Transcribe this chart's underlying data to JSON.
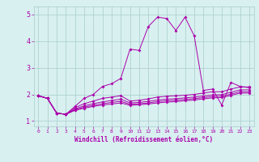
{
  "xlabel": "Windchill (Refroidissement éolien,°C)",
  "bg_color": "#d8f0f0",
  "line_color": "#aa00aa",
  "grid_color": "#aacccc",
  "xlim": [
    -0.5,
    23.5
  ],
  "ylim": [
    0.8,
    5.3
  ],
  "xticks": [
    0,
    1,
    2,
    3,
    4,
    5,
    6,
    7,
    8,
    9,
    10,
    11,
    12,
    13,
    14,
    15,
    16,
    17,
    18,
    19,
    20,
    21,
    22,
    23
  ],
  "yticks": [
    1,
    2,
    3,
    4,
    5
  ],
  "lines": [
    {
      "x": [
        0,
        1,
        2,
        3,
        4,
        5,
        6,
        7,
        8,
        9,
        10,
        11,
        12,
        13,
        14,
        15,
        16,
        17,
        18,
        19,
        20,
        21,
        22,
        23
      ],
      "y": [
        1.95,
        1.85,
        1.3,
        1.25,
        1.55,
        1.85,
        2.0,
        2.3,
        2.4,
        2.6,
        3.7,
        3.65,
        4.55,
        4.9,
        4.85,
        4.4,
        4.9,
        4.2,
        2.15,
        2.2,
        1.6,
        2.45,
        2.3,
        2.25
      ]
    },
    {
      "x": [
        0,
        1,
        2,
        3,
        4,
        5,
        6,
        7,
        8,
        9,
        10,
        11,
        12,
        13,
        14,
        15,
        16,
        17,
        18,
        19,
        20,
        21,
        22,
        23
      ],
      "y": [
        1.95,
        1.85,
        1.3,
        1.25,
        1.5,
        1.65,
        1.75,
        1.85,
        1.9,
        1.95,
        1.75,
        1.78,
        1.83,
        1.9,
        1.93,
        1.95,
        1.97,
        2.0,
        2.05,
        2.1,
        2.1,
        2.2,
        2.28,
        2.28
      ]
    },
    {
      "x": [
        0,
        1,
        2,
        3,
        4,
        5,
        6,
        7,
        8,
        9,
        10,
        11,
        12,
        13,
        14,
        15,
        16,
        17,
        18,
        19,
        20,
        21,
        22,
        23
      ],
      "y": [
        1.95,
        1.85,
        1.3,
        1.25,
        1.45,
        1.57,
        1.65,
        1.72,
        1.77,
        1.82,
        1.68,
        1.7,
        1.74,
        1.79,
        1.82,
        1.84,
        1.87,
        1.9,
        1.94,
        1.98,
        1.99,
        2.08,
        2.17,
        2.17
      ]
    },
    {
      "x": [
        0,
        1,
        2,
        3,
        4,
        5,
        6,
        7,
        8,
        9,
        10,
        11,
        12,
        13,
        14,
        15,
        16,
        17,
        18,
        19,
        20,
        21,
        22,
        23
      ],
      "y": [
        1.95,
        1.85,
        1.3,
        1.25,
        1.42,
        1.52,
        1.59,
        1.65,
        1.7,
        1.74,
        1.63,
        1.65,
        1.68,
        1.73,
        1.76,
        1.78,
        1.81,
        1.84,
        1.88,
        1.92,
        1.93,
        2.01,
        2.1,
        2.1
      ]
    },
    {
      "x": [
        0,
        1,
        2,
        3,
        4,
        5,
        6,
        7,
        8,
        9,
        10,
        11,
        12,
        13,
        14,
        15,
        16,
        17,
        18,
        19,
        20,
        21,
        22,
        23
      ],
      "y": [
        1.95,
        1.85,
        1.3,
        1.25,
        1.4,
        1.48,
        1.55,
        1.6,
        1.64,
        1.68,
        1.59,
        1.61,
        1.64,
        1.68,
        1.71,
        1.73,
        1.76,
        1.79,
        1.83,
        1.87,
        1.88,
        1.96,
        2.05,
        2.05
      ]
    }
  ]
}
